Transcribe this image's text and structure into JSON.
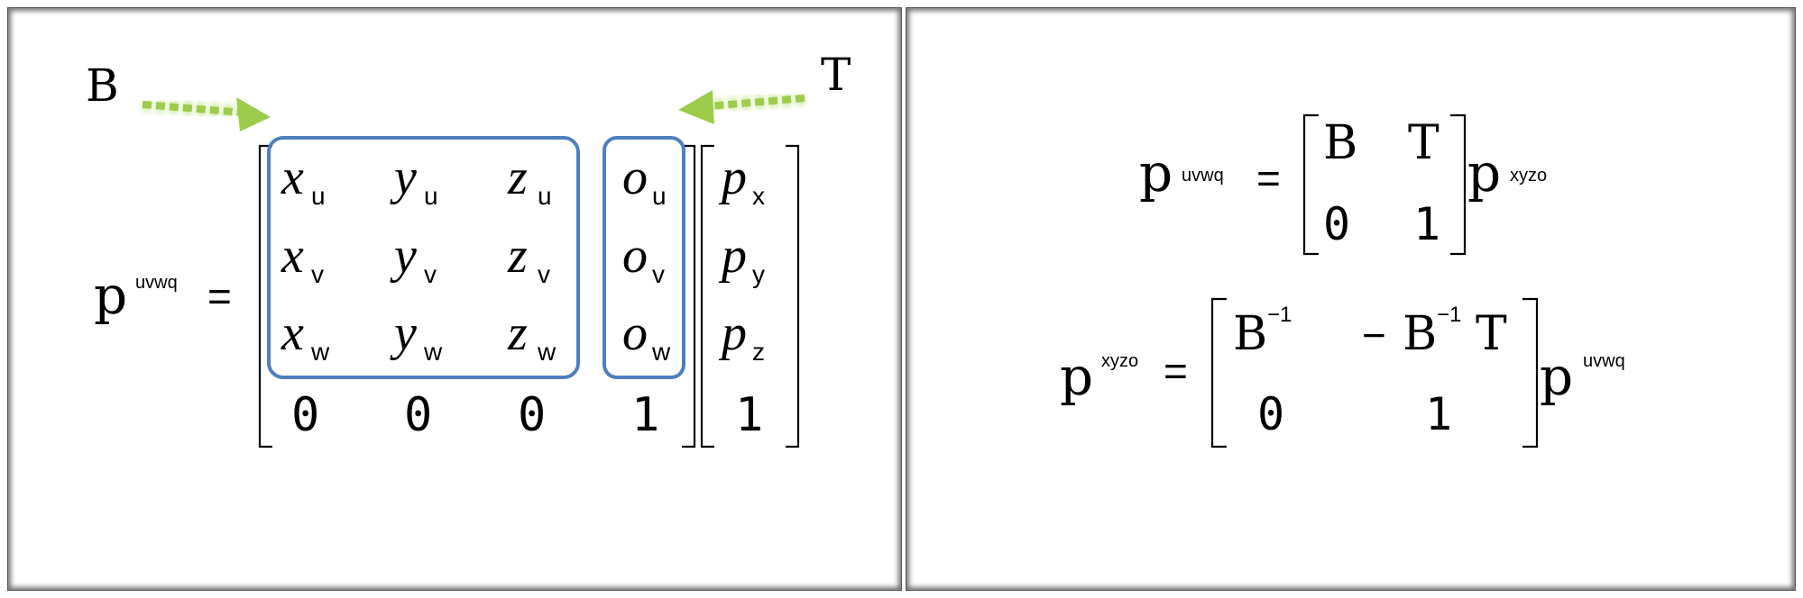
{
  "left": {
    "label_B": "B",
    "label_T": "T",
    "lhs": {
      "base": "p",
      "sup": "uvwq",
      "eq": "="
    },
    "matrix_cells": [
      {
        "base": "x",
        "sub": "u"
      },
      {
        "base": "y",
        "sub": "u"
      },
      {
        "base": "z",
        "sub": "u"
      },
      {
        "base": "o",
        "sub": "u"
      },
      {
        "base": "x",
        "sub": "v"
      },
      {
        "base": "y",
        "sub": "v"
      },
      {
        "base": "z",
        "sub": "v"
      },
      {
        "base": "o",
        "sub": "v"
      },
      {
        "base": "x",
        "sub": "w"
      },
      {
        "base": "y",
        "sub": "w"
      },
      {
        "base": "z",
        "sub": "w"
      },
      {
        "base": "o",
        "sub": "w"
      }
    ],
    "bottom_row": [
      "0",
      "0",
      "0",
      "1"
    ],
    "vector": [
      {
        "base": "p",
        "sub": "x"
      },
      {
        "base": "p",
        "sub": "y"
      },
      {
        "base": "p",
        "sub": "z"
      }
    ],
    "vector_last": "1"
  },
  "right": {
    "eq1": {
      "lhs_base": "p",
      "lhs_sup": "uvwq",
      "eq": "=",
      "m11": "B",
      "m12": "T",
      "m21": "0",
      "m22": "1",
      "rhs_base": "p",
      "rhs_sup": "xyzo"
    },
    "eq2": {
      "lhs_base": "p",
      "lhs_sup": "xyzo",
      "eq": "=",
      "m11_base": "B",
      "m11_sup": "−1",
      "m12_minus": "−",
      "m12_base": "B",
      "m12_sup": "−1",
      "m12_tail": "T",
      "m21": "0",
      "m22": "1",
      "rhs_base": "p",
      "rhs_sup": "uvwq"
    }
  },
  "colors": {
    "box_stroke": "#4f7fbf",
    "arrow": "#9ccc4a",
    "arrow_glow": "#d6ecb0",
    "text": "#000000"
  }
}
